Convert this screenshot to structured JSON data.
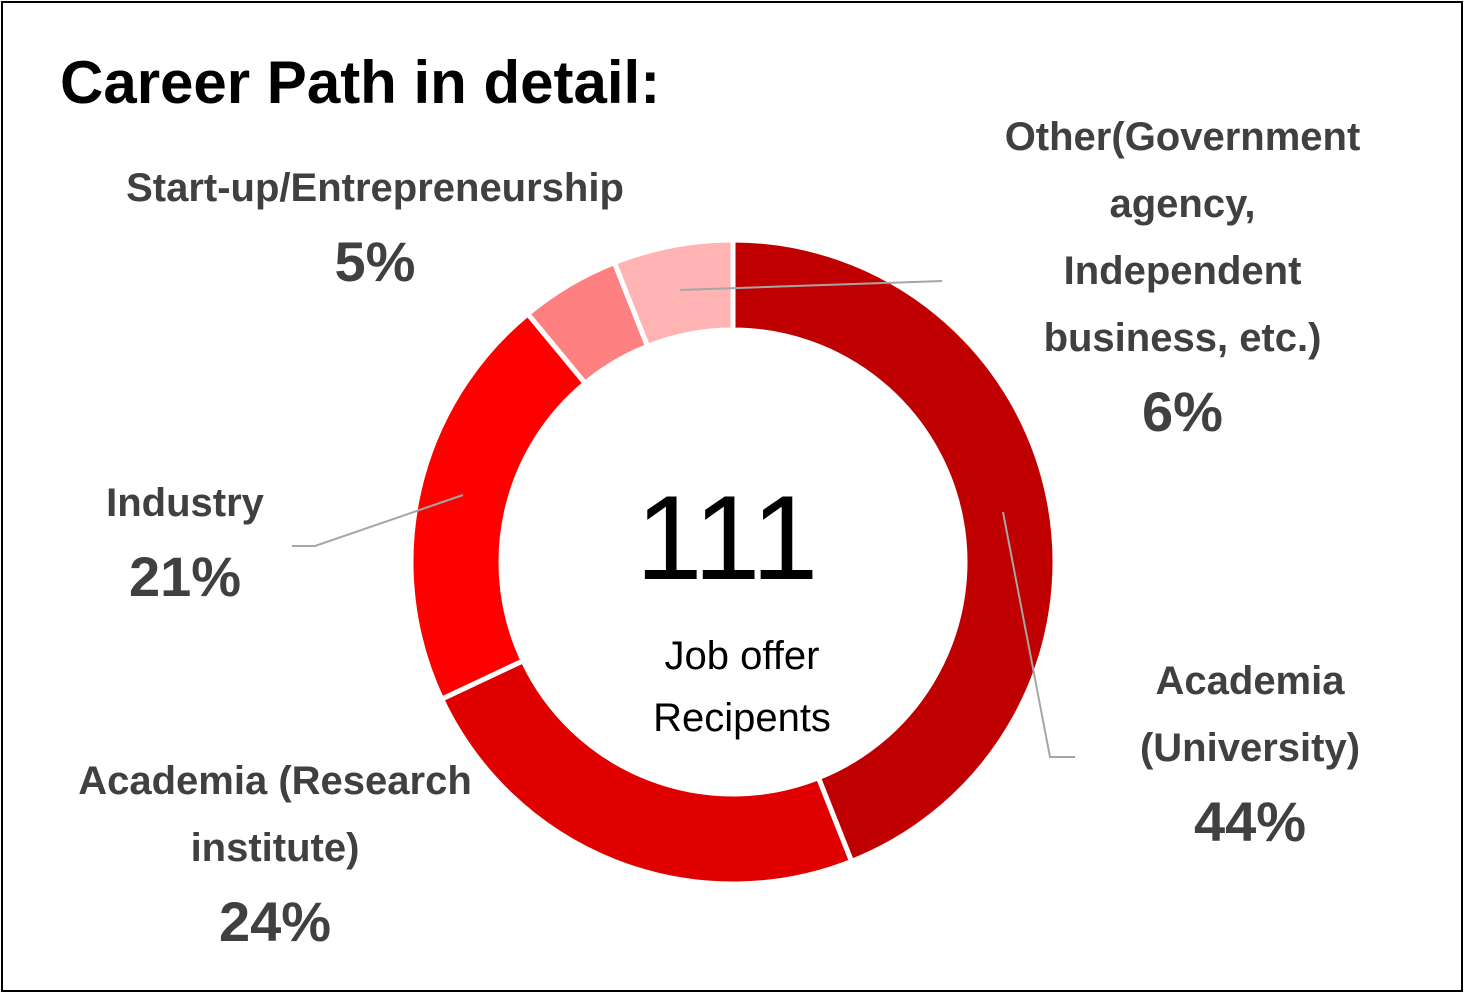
{
  "chart_data": {
    "type": "pie",
    "variant": "donut",
    "title": "Career Path in detail:",
    "center_value": "111",
    "center_label": "Job offer\nRecipents",
    "slices": [
      {
        "label": "Academia (University)",
        "label_lines": [
          "Academia",
          "(University)"
        ],
        "value": 44,
        "value_label": "44%",
        "color": "#C00000"
      },
      {
        "label": "Academia (Research institute)",
        "label_lines": [
          "Academia (Research",
          "institute)"
        ],
        "value": 24,
        "value_label": "24%",
        "color": "#E00000"
      },
      {
        "label": "Industry",
        "label_lines": [
          "Industry"
        ],
        "value": 21,
        "value_label": "21%",
        "color": "#FF0000"
      },
      {
        "label": "Start-up/Entrepreneurship",
        "label_lines": [
          "Start-up/Entrepreneurship"
        ],
        "value": 5,
        "value_label": "5%",
        "color": "#FF8080"
      },
      {
        "label": "Other(Government agency, Independent business, etc.)",
        "label_lines": [
          "Other(Government",
          "agency,",
          "Independent",
          "business, etc.)"
        ],
        "value": 6,
        "value_label": "6%",
        "color": "#FFB3B3"
      }
    ]
  }
}
